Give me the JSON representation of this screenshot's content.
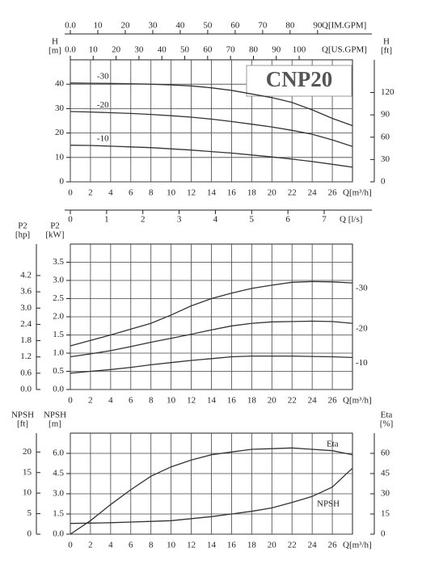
{
  "chart_data": [
    {
      "type": "line",
      "title": "CNP20",
      "x": [
        0,
        2,
        4,
        6,
        8,
        10,
        12,
        14,
        16,
        18,
        20,
        22,
        24,
        26,
        28
      ],
      "xlim": [
        0,
        28
      ],
      "xticks": [
        0,
        2,
        4,
        6,
        8,
        10,
        12,
        14,
        16,
        18,
        20,
        22,
        24,
        26
      ],
      "xlabel": "Q[m³/h]",
      "x2lim": [
        0,
        123.3
      ],
      "x2ticks": [
        {
          "value": 0,
          "label": "0.0"
        },
        10,
        20,
        30,
        40,
        50,
        60,
        70,
        80,
        90,
        100
      ],
      "x2label": "Q[US.GPM]",
      "x3lim": [
        0,
        102.7
      ],
      "x3ticks": [
        {
          "value": 0,
          "label": "0.0"
        },
        10,
        20,
        30,
        40,
        50,
        60,
        70,
        80,
        90
      ],
      "x3label": "Q[IM.GPM]",
      "x4lim": [
        0,
        7.78
      ],
      "x4ticks": [
        0,
        1,
        2,
        3,
        4,
        5,
        6,
        7
      ],
      "x4label": "Q [l/s]",
      "ylim": [
        0,
        50
      ],
      "yticks": [
        0,
        10,
        20,
        30,
        40
      ],
      "ylabel": [
        "H",
        "[m]"
      ],
      "y2lim": [
        0,
        164
      ],
      "y2ticks": [
        0,
        30,
        60,
        90,
        120
      ],
      "y2label": [
        "H",
        "[ft]"
      ],
      "grid": true,
      "series": [
        {
          "name": "-30",
          "color": "#333333",
          "values": [
            40.5,
            40.4,
            40.3,
            40.2,
            40,
            39.7,
            39.3,
            38.5,
            37.5,
            36,
            34.5,
            32.5,
            29.5,
            26,
            23
          ]
        },
        {
          "name": "-20",
          "color": "#333333",
          "values": [
            28.8,
            28.6,
            28.3,
            28,
            27.6,
            27.1,
            26.5,
            25.7,
            24.7,
            23.6,
            22.5,
            21.1,
            19.5,
            17.2,
            14.5
          ]
        },
        {
          "name": "-10",
          "color": "#333333",
          "values": [
            15,
            14.9,
            14.6,
            14.3,
            14,
            13.5,
            13,
            12.4,
            11.8,
            11,
            10.2,
            9.3,
            8.3,
            7.2,
            6
          ]
        }
      ]
    },
    {
      "type": "line",
      "x": [
        0,
        2,
        4,
        6,
        8,
        10,
        12,
        14,
        16,
        18,
        20,
        22,
        24,
        26,
        28
      ],
      "xlim": [
        0,
        28
      ],
      "xticks": [
        0,
        2,
        4,
        6,
        8,
        10,
        12,
        14,
        16,
        18,
        20,
        22,
        24,
        26
      ],
      "xlabel": "Q[m³/h]",
      "ylim": [
        0,
        4
      ],
      "yticks": [
        {
          "value": 0,
          "label": "0.0"
        },
        0.5,
        {
          "value": 1,
          "label": "1.0"
        },
        1.5,
        {
          "value": 2,
          "label": "2.0"
        },
        2.5,
        {
          "value": 3,
          "label": "3.0"
        },
        3.5
      ],
      "ylabel": [
        "P2",
        "[kW]"
      ],
      "y3lim": [
        0,
        5.36
      ],
      "y3ticks": [
        {
          "value": 0,
          "label": "0.0"
        },
        0.6,
        1.2,
        1.8,
        2.4,
        {
          "value": 3,
          "label": "3.0"
        },
        3.6,
        4.2
      ],
      "y3label": [
        "P2",
        "[hp]"
      ],
      "grid": true,
      "series": [
        {
          "name": "-30",
          "color": "#333333",
          "values": [
            1.2,
            1.35,
            1.5,
            1.66,
            1.82,
            2.05,
            2.3,
            2.5,
            2.65,
            2.78,
            2.87,
            2.95,
            2.97,
            2.96,
            2.93
          ]
        },
        {
          "name": "-20",
          "color": "#333333",
          "values": [
            0.9,
            0.98,
            1.07,
            1.18,
            1.3,
            1.41,
            1.52,
            1.64,
            1.75,
            1.82,
            1.86,
            1.87,
            1.88,
            1.87,
            1.82
          ]
        },
        {
          "name": "-10",
          "color": "#333333",
          "values": [
            0.45,
            0.5,
            0.55,
            0.61,
            0.68,
            0.74,
            0.8,
            0.85,
            0.9,
            0.92,
            0.92,
            0.92,
            0.91,
            0.9,
            0.88
          ]
        }
      ]
    },
    {
      "type": "line",
      "x": [
        0,
        2,
        4,
        6,
        8,
        10,
        12,
        14,
        16,
        18,
        20,
        22,
        24,
        26,
        28
      ],
      "xlim": [
        0,
        28
      ],
      "xticks": [
        0,
        2,
        4,
        6,
        8,
        10,
        12,
        14,
        16,
        18,
        20,
        22,
        24,
        26
      ],
      "xlabel": "Q[m³/h]",
      "ylim": [
        0,
        7.5
      ],
      "yticks": [
        {
          "value": 0,
          "label": "0.0"
        },
        1.5,
        {
          "value": 3,
          "label": "3.0"
        },
        4.5,
        {
          "value": 6,
          "label": "6.0"
        }
      ],
      "ylabel": [
        "NPSH",
        "[m]"
      ],
      "y2lim": [
        0,
        75
      ],
      "y2ticks": [
        0,
        15,
        30,
        45,
        60
      ],
      "y2label": [
        "Eta",
        "[%]"
      ],
      "y3lim": [
        0,
        24.6
      ],
      "y3ticks": [
        0,
        5,
        10,
        15,
        20
      ],
      "y3label": [
        "NPSH",
        "[ft]"
      ],
      "grid": true,
      "series": [
        {
          "name": "Eta",
          "color": "#333333",
          "axis": "y2",
          "values": [
            0,
            10,
            22,
            33,
            43,
            50,
            55,
            59,
            61,
            63,
            63.5,
            64,
            63,
            62,
            59
          ]
        },
        {
          "name": "NPSH",
          "color": "#333333",
          "values": [
            0.8,
            0.82,
            0.85,
            0.9,
            0.95,
            1,
            1.15,
            1.3,
            1.5,
            1.7,
            1.95,
            2.35,
            2.8,
            3.5,
            4.9
          ]
        }
      ]
    }
  ]
}
